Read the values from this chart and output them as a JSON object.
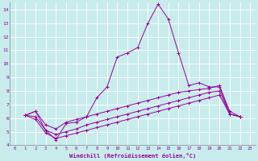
{
  "xlabel": "Windchill (Refroidissement éolien,°C)",
  "background_color": "#c8ecec",
  "grid_color": "#b0d8d8",
  "line_color": "#990099",
  "xlim": [
    -0.5,
    23.5
  ],
  "ylim": [
    4,
    14.5
  ],
  "xticks": [
    0,
    1,
    2,
    3,
    4,
    5,
    6,
    7,
    8,
    9,
    10,
    11,
    12,
    13,
    14,
    15,
    16,
    17,
    18,
    19,
    20,
    21,
    22,
    23
  ],
  "yticks": [
    4,
    5,
    6,
    7,
    8,
    9,
    10,
    11,
    12,
    13,
    14
  ],
  "series": [
    {
      "x": [
        1,
        2,
        3,
        4,
        5,
        6,
        7,
        8,
        9,
        10,
        11,
        12,
        13,
        14,
        15,
        16,
        17,
        18,
        19,
        20,
        21,
        22
      ],
      "y": [
        6.2,
        6.5,
        5.1,
        4.4,
        5.6,
        5.7,
        6.1,
        7.5,
        8.3,
        10.5,
        10.8,
        11.2,
        13.0,
        14.4,
        13.3,
        10.8,
        8.4,
        8.6,
        8.3,
        8.3,
        6.3,
        6.1
      ]
    },
    {
      "x": [
        1,
        2,
        3,
        4,
        5,
        6,
        7,
        8,
        9,
        10,
        11,
        12,
        13,
        14,
        15,
        16,
        17,
        18,
        19,
        20,
        21,
        22
      ],
      "y": [
        6.2,
        6.5,
        5.5,
        5.2,
        5.7,
        5.9,
        6.1,
        6.3,
        6.5,
        6.7,
        6.9,
        7.1,
        7.3,
        7.5,
        7.7,
        7.9,
        8.0,
        8.1,
        8.2,
        8.4,
        6.5,
        6.1
      ]
    },
    {
      "x": [
        1,
        2,
        3,
        4,
        5,
        6,
        7,
        8,
        9,
        10,
        11,
        12,
        13,
        14,
        15,
        16,
        17,
        18,
        19,
        20,
        21,
        22
      ],
      "y": [
        6.2,
        6.1,
        5.1,
        4.8,
        5.0,
        5.2,
        5.5,
        5.7,
        5.9,
        6.1,
        6.3,
        6.5,
        6.7,
        6.9,
        7.1,
        7.3,
        7.5,
        7.7,
        7.9,
        8.0,
        6.3,
        6.1
      ]
    },
    {
      "x": [
        1,
        2,
        3,
        4,
        5,
        6,
        7,
        8,
        9,
        10,
        11,
        12,
        13,
        14,
        15,
        16,
        17,
        18,
        19,
        20,
        21,
        22
      ],
      "y": [
        6.2,
        5.9,
        4.9,
        4.5,
        4.7,
        4.9,
        5.1,
        5.3,
        5.5,
        5.7,
        5.9,
        6.1,
        6.3,
        6.5,
        6.7,
        6.9,
        7.1,
        7.3,
        7.5,
        7.7,
        6.3,
        6.1
      ]
    }
  ]
}
